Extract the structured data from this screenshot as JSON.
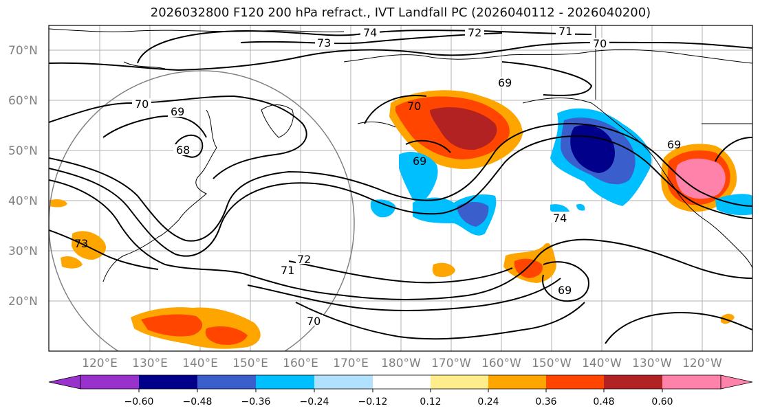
{
  "title": "2026032800 F120 200 hPa refract., IVT Landfall PC (2026040112 - 2026040200)",
  "lat_labels": [
    "70°N",
    "60°N",
    "50°N",
    "40°N",
    "30°N",
    "20°N"
  ],
  "lon_labels": [
    "120°E",
    "130°E",
    "140°E",
    "150°E",
    "160°E",
    "170°E",
    "180°W",
    "170°W",
    "160°W",
    "150°W",
    "140°W",
    "130°W",
    "120°W"
  ],
  "contour_labels": [
    "74",
    "73",
    "72",
    "71",
    "70",
    "70",
    "69",
    "69",
    "68",
    "69",
    "69",
    "74",
    "73",
    "72",
    "71",
    "70",
    "70",
    "69"
  ],
  "colorbar": {
    "ticks": [
      "−0.60",
      "−0.48",
      "−0.36",
      "−0.24",
      "−0.12",
      "0.12",
      "0.24",
      "0.36",
      "0.48",
      "0.60"
    ],
    "colors": [
      "#9932cc",
      "#00008b",
      "#3a5fcd",
      "#00bfff",
      "#b0e2ff",
      "#ffffff",
      "#ffec8b",
      "#ffa500",
      "#ff4500",
      "#b22222",
      "#ff82ab",
      "#ff82ab"
    ]
  }
}
